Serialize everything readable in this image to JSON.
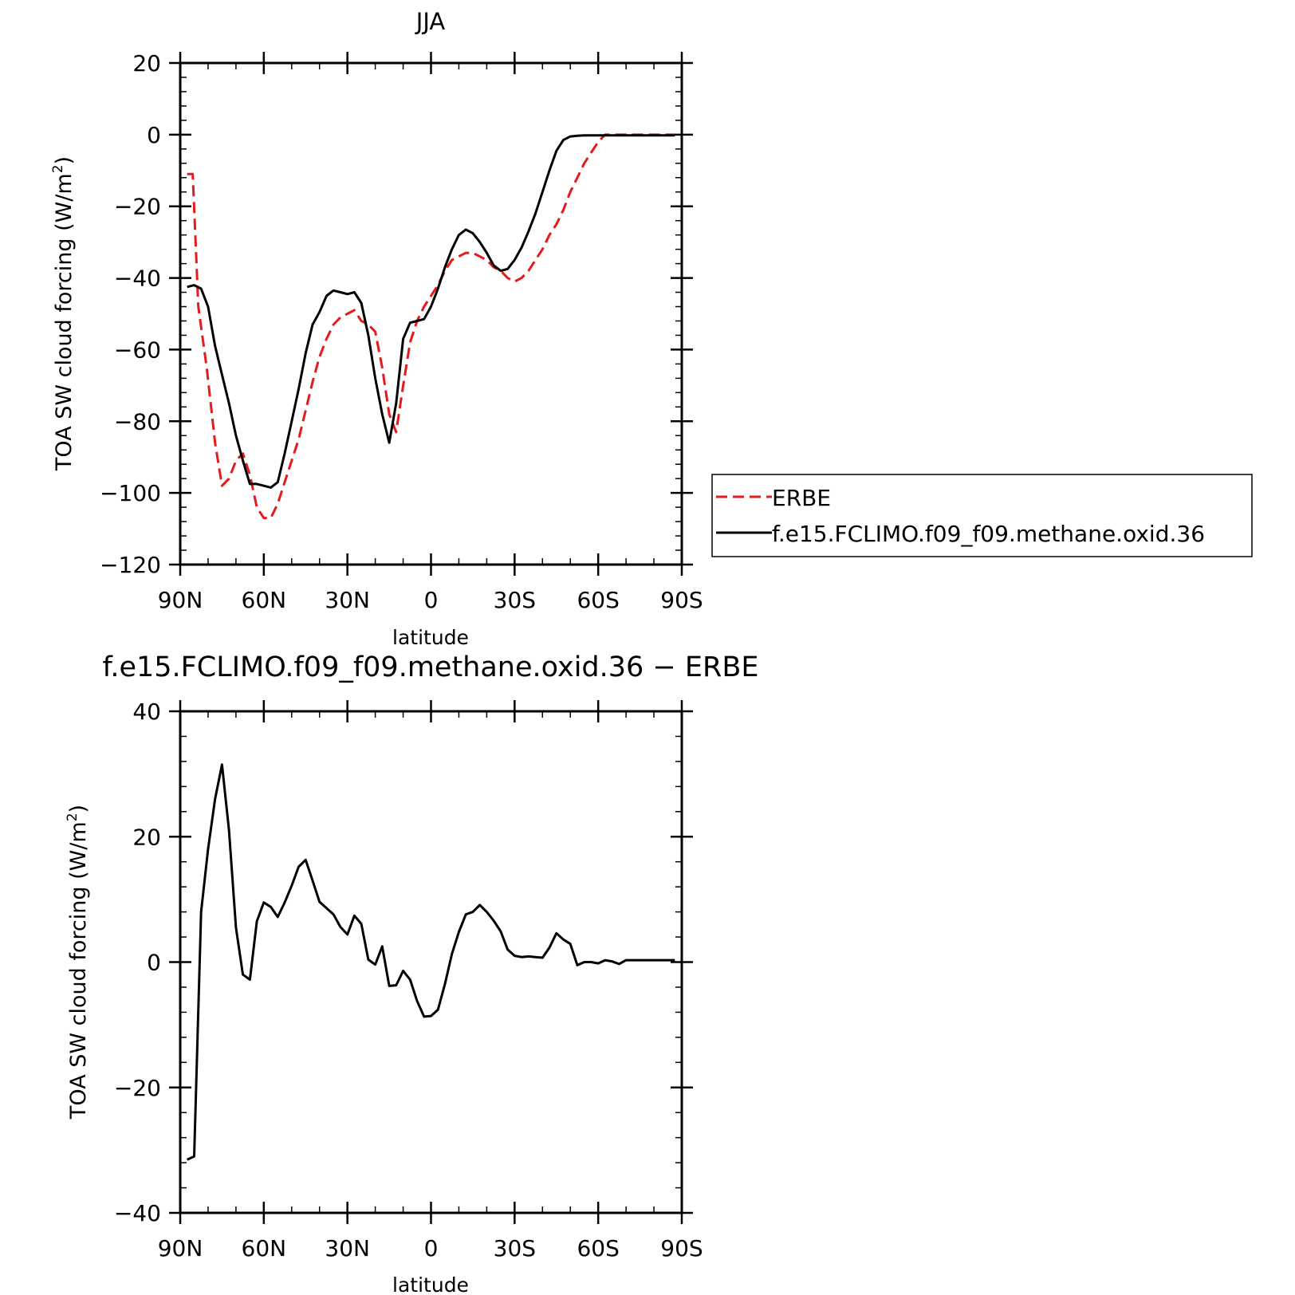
{
  "chart_data": [
    {
      "type": "line",
      "title": "JJA",
      "xlabel": "latitude",
      "ylabel": "TOA SW cloud forcing (W/m",
      "ylabel_sup": "2",
      "ylabel_close": ")",
      "xlim": [
        90,
        -90
      ],
      "ylim": [
        -120,
        20
      ],
      "x_ticks": [
        90,
        60,
        30,
        0,
        -30,
        -60,
        -90
      ],
      "x_tick_labels": [
        "90N",
        "60N",
        "30N",
        "0",
        "30S",
        "60S",
        "90S"
      ],
      "y_ticks": [
        20,
        0,
        -20,
        -40,
        -60,
        -80,
        -100,
        -120
      ],
      "y_tick_labels": [
        "20",
        "0",
        "−20",
        "−40",
        "−60",
        "−80",
        "−100",
        "−120"
      ],
      "legend_position": "right",
      "series": [
        {
          "name": "ERBE",
          "color": "#e41a1c",
          "style": "dashed",
          "x": [
            87.5,
            85.5,
            83.5,
            80.5,
            77.5,
            75,
            72.5,
            70,
            67.5,
            65,
            62.5,
            60,
            57.5,
            55,
            52.5,
            50,
            47.5,
            45,
            42.5,
            40,
            37.5,
            35,
            32.5,
            30,
            27.5,
            25,
            22.5,
            20,
            17.5,
            15,
            12.5,
            10,
            7.5,
            5,
            2.5,
            0,
            -2.5,
            -5,
            -7.5,
            -10,
            -12.5,
            -15,
            -17.5,
            -20,
            -22.5,
            -25,
            -27.5,
            -30,
            -32.5,
            -35,
            -37.5,
            -40,
            -42.5,
            -45,
            -47.5,
            -50,
            -52.5,
            -55,
            -57.5,
            -60,
            -62.5,
            -65,
            -67.5,
            -70,
            -72.5,
            -75,
            -77.5,
            -80,
            -82.5,
            -85,
            -87.5
          ],
          "y": [
            -11,
            -11,
            -48,
            -65,
            -86,
            -98,
            -96,
            -91,
            -89,
            -95,
            -104,
            -107,
            -107,
            -103,
            -97,
            -91,
            -85,
            -77,
            -69,
            -62,
            -57,
            -53,
            -51,
            -50,
            -49,
            -52,
            -53,
            -55,
            -65,
            -78,
            -83,
            -70,
            -58,
            -52,
            -48,
            -45,
            -42,
            -38,
            -35,
            -34,
            -33,
            -33,
            -34,
            -35,
            -37,
            -38,
            -40,
            -41,
            -40,
            -38,
            -35,
            -32,
            -28,
            -25,
            -21,
            -16,
            -12,
            -8,
            -5,
            -2,
            0,
            0,
            0,
            0,
            0,
            0,
            0,
            0,
            0,
            0,
            0
          ]
        },
        {
          "name": "f.e15.FCLIMO.f09_f09.methane.oxid.36",
          "color": "#000000",
          "style": "solid",
          "x": [
            87.5,
            85,
            82.5,
            80,
            77.5,
            75,
            72.5,
            70,
            67.5,
            65,
            62.5,
            60,
            57.5,
            55,
            52.5,
            50,
            47.5,
            45,
            42.5,
            40,
            37.5,
            35,
            32.5,
            30,
            27.5,
            25,
            22.5,
            20,
            17.5,
            15,
            12.5,
            10,
            7.5,
            5,
            2.5,
            0,
            -2.5,
            -5,
            -7.5,
            -10,
            -12.5,
            -15,
            -17.5,
            -20,
            -22.5,
            -25,
            -27.5,
            -30,
            -32.5,
            -35,
            -37.5,
            -40,
            -42.5,
            -45,
            -47.5,
            -50,
            -52.5,
            -55,
            -57.5,
            -60,
            -62.5,
            -65,
            -67.5,
            -70,
            -72.5,
            -75,
            -77.5,
            -80,
            -82.5,
            -85,
            -87.5
          ],
          "y": [
            -42.5,
            -42,
            -43,
            -48,
            -59,
            -67,
            -75,
            -84,
            -91,
            -97.5,
            -97.5,
            -98,
            -98.5,
            -97,
            -89,
            -80,
            -71,
            -61,
            -53,
            -49.5,
            -45,
            -43.5,
            -44,
            -44.5,
            -44,
            -47,
            -56,
            -68,
            -78,
            -86,
            -75,
            -57,
            -52.5,
            -52,
            -51.5,
            -48,
            -43,
            -37,
            -32,
            -28,
            -26.5,
            -27.5,
            -30,
            -33,
            -36.5,
            -38,
            -37.5,
            -35,
            -31.5,
            -27,
            -22,
            -16,
            -10,
            -4.5,
            -1.5,
            -0.5,
            -0.3,
            -0.2,
            -0.2,
            -0.2,
            -0.2,
            -0.2,
            -0.2,
            -0.2,
            -0.2,
            -0.2,
            -0.2,
            -0.2,
            -0.2,
            -0.2,
            -0.2
          ]
        }
      ]
    },
    {
      "type": "line",
      "title": "f.e15.FCLIMO.f09_f09.methane.oxid.36 − ERBE",
      "xlabel": "latitude",
      "ylabel": "TOA SW cloud forcing (W/m",
      "ylabel_sup": "2",
      "ylabel_close": ")",
      "xlim": [
        90,
        -90
      ],
      "ylim": [
        -40,
        40
      ],
      "x_ticks": [
        90,
        60,
        30,
        0,
        -30,
        -60,
        -90
      ],
      "x_tick_labels": [
        "90N",
        "60N",
        "30N",
        "0",
        "30S",
        "60S",
        "90S"
      ],
      "y_ticks": [
        40,
        20,
        0,
        -20,
        -40
      ],
      "y_tick_labels": [
        "40",
        "20",
        "0",
        "−20",
        "−40"
      ],
      "series": [
        {
          "color": "#000000",
          "style": "solid",
          "x": [
            87.5,
            85,
            82.5,
            80,
            77.5,
            75,
            72.5,
            70,
            67.5,
            65,
            62.5,
            60,
            57.5,
            55,
            52.5,
            50,
            47.5,
            45,
            42.5,
            40,
            37.5,
            35,
            32.5,
            30,
            27.5,
            25,
            22.5,
            20,
            17.5,
            15,
            12.5,
            10,
            7.5,
            5,
            2.5,
            0,
            -2.5,
            -5,
            -7.5,
            -10,
            -12.5,
            -15,
            -17.5,
            -20,
            -22.5,
            -25,
            -27.5,
            -30,
            -32.5,
            -35,
            -37.5,
            -40,
            -42.5,
            -45,
            -47.5,
            -50,
            -52.5,
            -55,
            -57.5,
            -60,
            -62.5,
            -65,
            -67.5,
            -70,
            -72.5,
            -75,
            -77.5,
            -80,
            -82.5,
            -85,
            -87.5
          ],
          "y": [
            -31.5,
            -31,
            8,
            18,
            26,
            31.5,
            21,
            5.5,
            -2,
            -2.8,
            6.5,
            9.5,
            8.8,
            7.2,
            9.5,
            12.2,
            15.2,
            16.3,
            13,
            9.6,
            8.6,
            7.6,
            5.6,
            4.4,
            7.4,
            6.1,
            0.4,
            -0.4,
            2.5,
            -3.8,
            -3.7,
            -1.4,
            -2.8,
            -6.2,
            -8.7,
            -8.6,
            -7.6,
            -3.5,
            1.3,
            4.8,
            7.6,
            8,
            9.1,
            8,
            6.6,
            4.9,
            2,
            1,
            0.8,
            0.9,
            0.8,
            0.7,
            2.3,
            4.6,
            3.6,
            2.9,
            -0.5,
            0,
            0,
            -0.2,
            0.3,
            0.1,
            -0.3,
            0.3,
            0.3,
            0.3,
            0.3,
            0.3,
            0.3,
            0.3,
            0.3
          ]
        }
      ]
    }
  ]
}
